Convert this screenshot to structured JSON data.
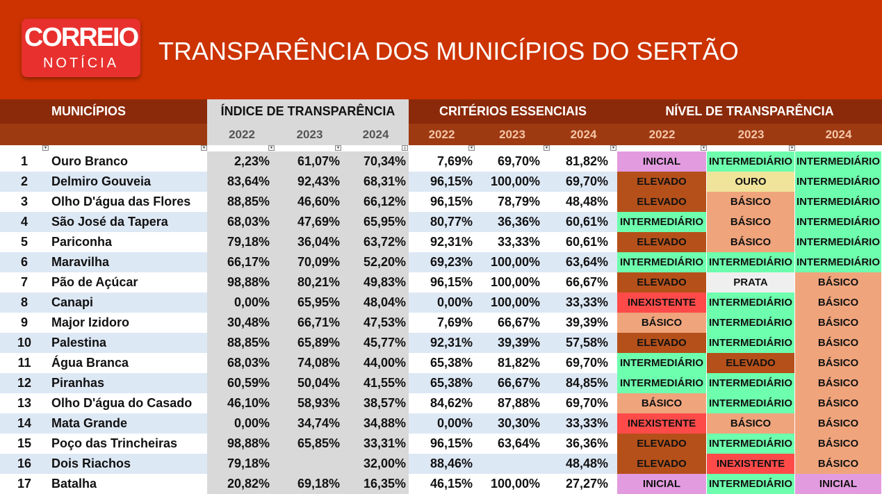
{
  "logo": {
    "top": "CORREIO",
    "bottom": "NOTÍCIA"
  },
  "title": "TRANSPARÊNCIA DOS MUNICÍPIOS DO SERTÃO",
  "headers": {
    "municipios": "MUNICÍPIOS",
    "indice": "ÍNDICE DE TRANSPARÊNCIA",
    "criterios": "CRITÉRIOS ESSENCIAIS",
    "nivel": "NÍVEL DE TRANSPARÊNCIA"
  },
  "years": [
    "2022",
    "2023",
    "2024"
  ],
  "level_colors": {
    "INICIAL": "#e39be0",
    "INTERMEDIÁRIO": "#6dffad",
    "ELEVADO": "#b5501a",
    "OURO": "#f0e49a",
    "BÁSICO": "#f0a47c",
    "PRATA": "#efefef",
    "INEXISTENTE": "#ff4a4a"
  },
  "rows": [
    {
      "n": "1",
      "name": "Ouro Branco",
      "i": [
        "2,23%",
        "61,07%",
        "70,34%"
      ],
      "c": [
        "7,69%",
        "69,70%",
        "81,82%"
      ],
      "l": [
        "INICIAL",
        "INTERMEDIÁRIO",
        "INTERMEDIÁRIO"
      ]
    },
    {
      "n": "2",
      "name": "Delmiro Gouveia",
      "i": [
        "83,64%",
        "92,43%",
        "68,31%"
      ],
      "c": [
        "96,15%",
        "100,00%",
        "69,70%"
      ],
      "l": [
        "ELEVADO",
        "OURO",
        "INTERMEDIÁRIO"
      ]
    },
    {
      "n": "3",
      "name": "Olho D'água das Flores",
      "i": [
        "88,85%",
        "46,60%",
        "66,12%"
      ],
      "c": [
        "96,15%",
        "78,79%",
        "48,48%"
      ],
      "l": [
        "ELEVADO",
        "BÁSICO",
        "INTERMEDIÁRIO"
      ]
    },
    {
      "n": "4",
      "name": "São José da Tapera",
      "i": [
        "68,03%",
        "47,69%",
        "65,95%"
      ],
      "c": [
        "80,77%",
        "36,36%",
        "60,61%"
      ],
      "l": [
        "INTERMEDIÁRIO",
        "BÁSICO",
        "INTERMEDIÁRIO"
      ]
    },
    {
      "n": "5",
      "name": "Pariconha",
      "i": [
        "79,18%",
        "36,04%",
        "63,72%"
      ],
      "c": [
        "92,31%",
        "33,33%",
        "60,61%"
      ],
      "l": [
        "ELEVADO",
        "BÁSICO",
        "INTERMEDIÁRIO"
      ]
    },
    {
      "n": "6",
      "name": "Maravilha",
      "i": [
        "66,17%",
        "70,09%",
        "52,20%"
      ],
      "c": [
        "69,23%",
        "100,00%",
        "63,64%"
      ],
      "l": [
        "INTERMEDIÁRIO",
        "INTERMEDIÁRIO",
        "INTERMEDIÁRIO"
      ]
    },
    {
      "n": "7",
      "name": "Pão de Açúcar",
      "i": [
        "98,88%",
        "80,21%",
        "49,83%"
      ],
      "c": [
        "96,15%",
        "100,00%",
        "66,67%"
      ],
      "l": [
        "ELEVADO",
        "PRATA",
        "BÁSICO"
      ]
    },
    {
      "n": "8",
      "name": "Canapi",
      "i": [
        "0,00%",
        "65,95%",
        "48,04%"
      ],
      "c": [
        "0,00%",
        "100,00%",
        "33,33%"
      ],
      "l": [
        "INEXISTENTE",
        "INTERMEDIÁRIO",
        "BÁSICO"
      ]
    },
    {
      "n": "9",
      "name": "Major Izidoro",
      "i": [
        "30,48%",
        "66,71%",
        "47,53%"
      ],
      "c": [
        "7,69%",
        "66,67%",
        "39,39%"
      ],
      "l": [
        "BÁSICO",
        "INTERMEDIÁRIO",
        "BÁSICO"
      ]
    },
    {
      "n": "10",
      "name": "Palestina",
      "i": [
        "88,85%",
        "65,89%",
        "45,77%"
      ],
      "c": [
        "92,31%",
        "39,39%",
        "57,58%"
      ],
      "l": [
        "ELEVADO",
        "INTERMEDIÁRIO",
        "BÁSICO"
      ]
    },
    {
      "n": "11",
      "name": "Água Branca",
      "i": [
        "68,03%",
        "74,08%",
        "44,00%"
      ],
      "c": [
        "65,38%",
        "81,82%",
        "69,70%"
      ],
      "l": [
        "INTERMEDIÁRIO",
        "ELEVADO",
        "BÁSICO"
      ]
    },
    {
      "n": "12",
      "name": "Piranhas",
      "i": [
        "60,59%",
        "50,04%",
        "41,55%"
      ],
      "c": [
        "65,38%",
        "66,67%",
        "84,85%"
      ],
      "l": [
        "INTERMEDIÁRIO",
        "INTERMEDIÁRIO",
        "BÁSICO"
      ]
    },
    {
      "n": "13",
      "name": "Olho D'água do Casado",
      "i": [
        "46,10%",
        "58,93%",
        "38,57%"
      ],
      "c": [
        "84,62%",
        "87,88%",
        "69,70%"
      ],
      "l": [
        "BÁSICO",
        "INTERMEDIÁRIO",
        "BÁSICO"
      ]
    },
    {
      "n": "14",
      "name": "Mata Grande",
      "i": [
        "0,00%",
        "34,74%",
        "34,88%"
      ],
      "c": [
        "0,00%",
        "30,30%",
        "33,33%"
      ],
      "l": [
        "INEXISTENTE",
        "BÁSICO",
        "BÁSICO"
      ]
    },
    {
      "n": "15",
      "name": "Poço das Trincheiras",
      "i": [
        "98,88%",
        "65,85%",
        "33,31%"
      ],
      "c": [
        "96,15%",
        "63,64%",
        "36,36%"
      ],
      "l": [
        "ELEVADO",
        "INTERMEDIÁRIO",
        "BÁSICO"
      ]
    },
    {
      "n": "16",
      "name": "Dois Riachos",
      "i": [
        "79,18%",
        "",
        "32,00%"
      ],
      "c": [
        "88,46%",
        "",
        "48,48%"
      ],
      "l": [
        "ELEVADO",
        "INEXISTENTE",
        "BÁSICO"
      ]
    },
    {
      "n": "17",
      "name": "Batalha",
      "i": [
        "20,82%",
        "69,18%",
        "16,35%"
      ],
      "c": [
        "46,15%",
        "100,00%",
        "27,27%"
      ],
      "l": [
        "INICIAL",
        "INTERMEDIÁRIO",
        "INICIAL"
      ]
    }
  ]
}
